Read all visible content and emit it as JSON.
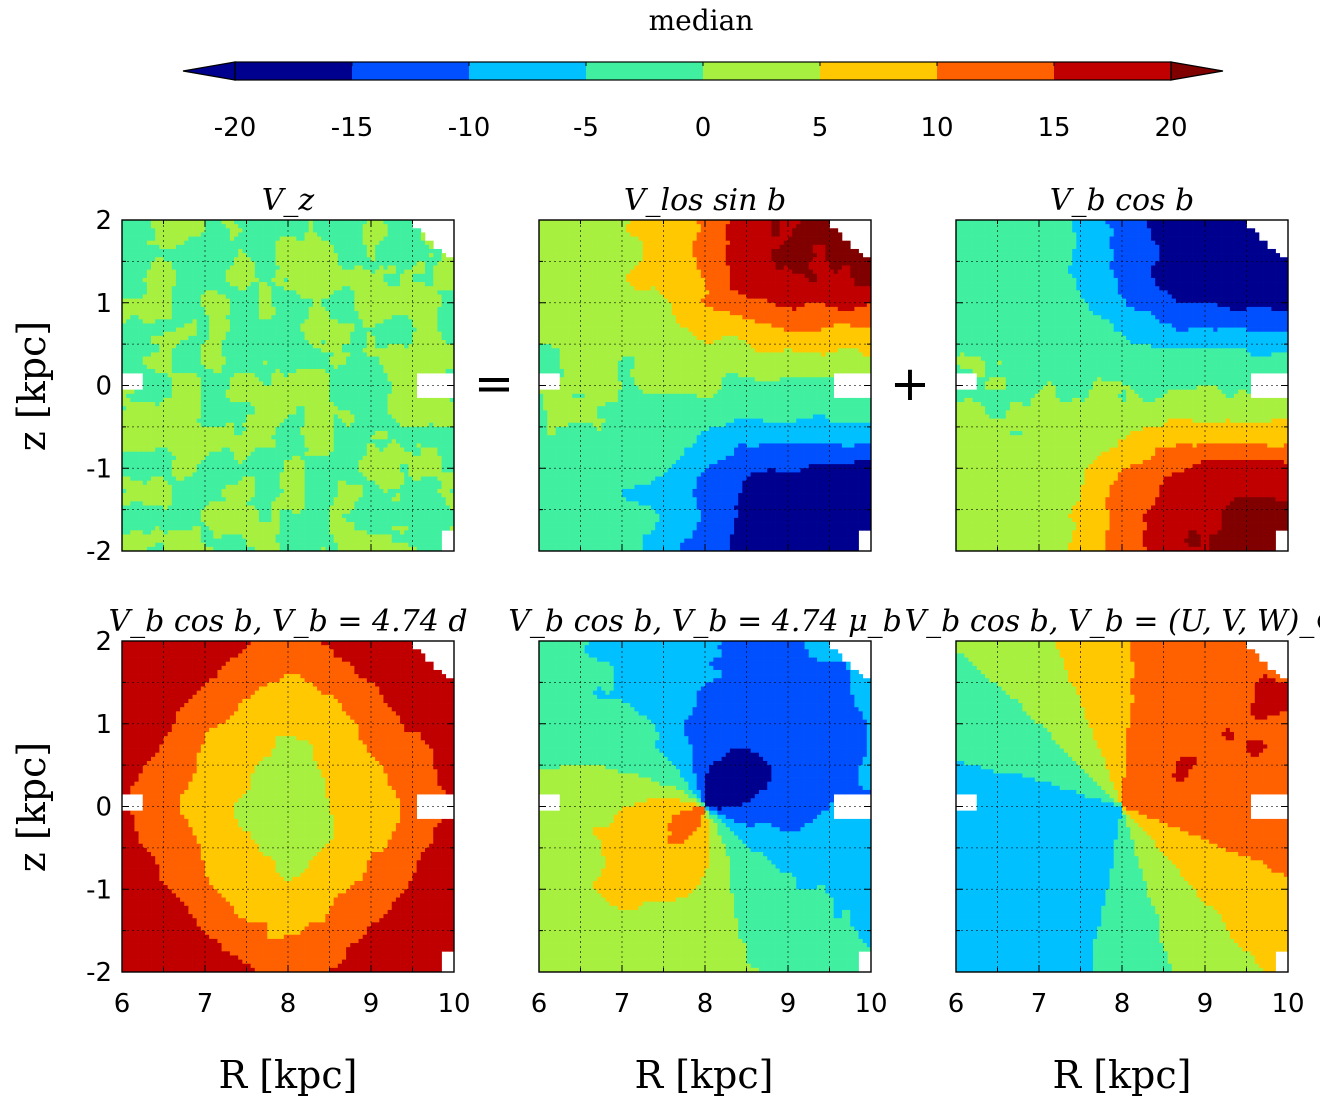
{
  "chart_data": {
    "type": "heatmap",
    "colorbar": {
      "title": "median",
      "ticks": [
        -20,
        -15,
        -10,
        -5,
        0,
        5,
        10,
        15,
        20
      ],
      "tick_labels": [
        "-20",
        "-15",
        "-10",
        "-5",
        "0",
        "5",
        "10",
        "15",
        "20"
      ],
      "levels": [
        -20,
        -15,
        -10,
        -5,
        0,
        5,
        10,
        15,
        20
      ],
      "colors": [
        "#00008f",
        "#0050ff",
        "#00c0ff",
        "#40f0a0",
        "#a8f040",
        "#ffc800",
        "#ff6000",
        "#c00000",
        "#800000"
      ],
      "extend": "both",
      "under_color": "#00008f",
      "over_color": "#800000"
    },
    "axes": {
      "xlabel": "R [kpc]",
      "ylabel": "z [kpc]",
      "xlim": [
        6,
        10
      ],
      "ylim": [
        -2,
        2
      ],
      "xticks": [
        "6",
        "7",
        "8",
        "9",
        "10"
      ],
      "yticks": [
        "2",
        "1",
        "0",
        "-1",
        "-2"
      ],
      "grid": true
    },
    "operators": [
      "=",
      "+"
    ],
    "panels": [
      {
        "id": "vz",
        "title": "V_z",
        "pattern": "noise",
        "amplitude": 0,
        "noise": 4.5
      },
      {
        "id": "vlos_sinb",
        "title": "V_los sin b",
        "pattern": "dipole",
        "amplitude": 22,
        "noise": 2.0
      },
      {
        "id": "vb_cosb",
        "title": "V_b cos b",
        "pattern": "dipole",
        "amplitude": -22,
        "noise": 2.0
      },
      {
        "id": "vb_cosb_d",
        "title": "V_b cos b, V_b = 4.74 d",
        "pattern": "distance",
        "amplitude": 16,
        "noise": 1.2
      },
      {
        "id": "vb_cosb_mub",
        "title": "V_b cos b, V_b = 4.74 μ_b",
        "pattern": "proper_motion",
        "amplitude": 18,
        "noise": 1.5
      },
      {
        "id": "vb_cosb_solar",
        "title": "V_b cos b, V_b = (U, V, W)_⊙",
        "pattern": "solar",
        "amplitude": 12,
        "noise": 0.4
      }
    ]
  }
}
